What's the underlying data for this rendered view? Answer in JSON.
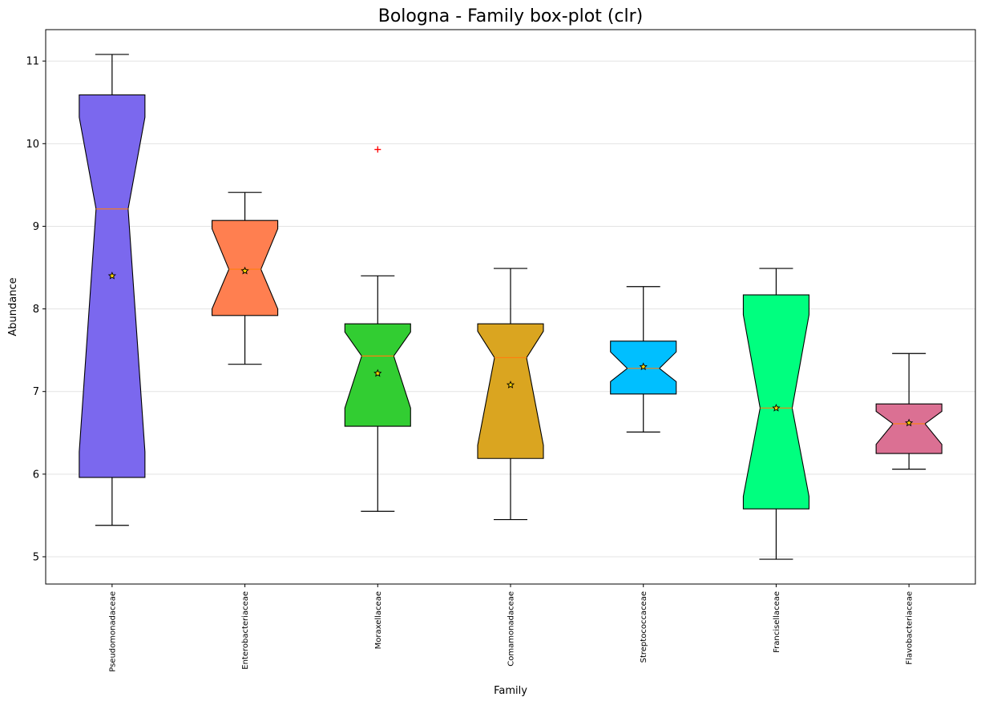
{
  "chart_data": {
    "type": "box",
    "title": "Bologna - Family box-plot (clr)",
    "xlabel": "Family",
    "ylabel": "Abundance",
    "ylim": [
      4.67,
      11.38
    ],
    "yticks": [
      5,
      6,
      7,
      8,
      9,
      10,
      11
    ],
    "grid": "horizontal",
    "notched": true,
    "categories": [
      "Pseudomonadaceae",
      "Enterobacteriaceae",
      "Moraxellaceae",
      "Comamonadaceae",
      "Streptococcaceae",
      "Francisellaceae",
      "Flavobacteriaceae"
    ],
    "boxes": [
      {
        "whisker_low": 5.38,
        "q1": 5.96,
        "median": 9.21,
        "q3": 10.59,
        "whisker_high": 11.08,
        "mean": 8.4,
        "notch_low": 6.27,
        "notch_high": 10.32,
        "color": "#7B68EE",
        "outliers": []
      },
      {
        "whisker_low": 7.33,
        "q1": 7.92,
        "median": 8.48,
        "q3": 9.07,
        "whisker_high": 9.41,
        "mean": 8.46,
        "notch_low": 8.0,
        "notch_high": 8.97,
        "color": "#FF7F50",
        "outliers": []
      },
      {
        "whisker_low": 5.55,
        "q1": 6.58,
        "median": 7.43,
        "q3": 7.82,
        "whisker_high": 8.4,
        "mean": 7.22,
        "notch_low": 6.8,
        "notch_high": 7.72,
        "color": "#32CD32",
        "outliers": [
          9.93
        ]
      },
      {
        "whisker_low": 5.45,
        "q1": 6.19,
        "median": 7.41,
        "q3": 7.82,
        "whisker_high": 8.49,
        "mean": 7.08,
        "notch_low": 6.35,
        "notch_high": 7.73,
        "color": "#DAA520",
        "outliers": []
      },
      {
        "whisker_low": 6.51,
        "q1": 6.97,
        "median": 7.28,
        "q3": 7.61,
        "whisker_high": 8.27,
        "mean": 7.3,
        "notch_low": 7.12,
        "notch_high": 7.48,
        "color": "#00BFFF",
        "outliers": []
      },
      {
        "whisker_low": 4.97,
        "q1": 5.58,
        "median": 6.8,
        "q3": 8.17,
        "whisker_high": 8.49,
        "mean": 6.8,
        "notch_low": 5.73,
        "notch_high": 7.93,
        "color": "#00FF7F",
        "outliers": []
      },
      {
        "whisker_low": 6.06,
        "q1": 6.25,
        "median": 6.61,
        "q3": 6.85,
        "whisker_high": 7.46,
        "mean": 6.62,
        "notch_low": 6.36,
        "notch_high": 6.76,
        "color": "#DB7093",
        "outliers": []
      }
    ],
    "median_color": "#FF7F0E",
    "outlier_color": "#FF0000",
    "mean_marker": "star",
    "mean_color": "#FFD700"
  }
}
